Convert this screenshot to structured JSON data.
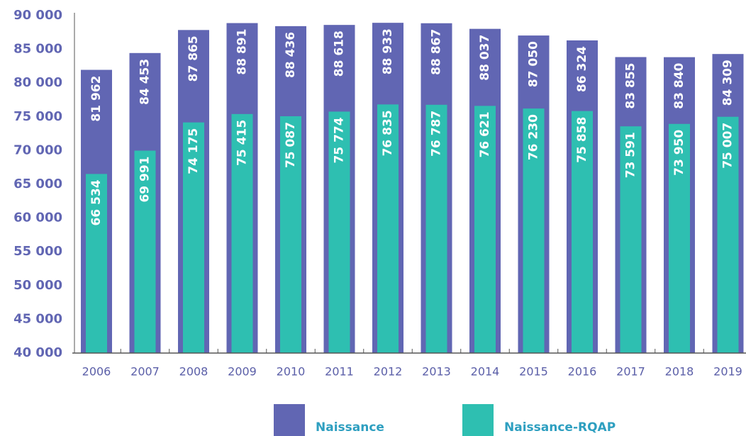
{
  "chart_data": {
    "type": "bar",
    "overlap": true,
    "categories": [
      "2006",
      "2007",
      "2008",
      "2009",
      "2010",
      "2011",
      "2012",
      "2013",
      "2014",
      "2015",
      "2016",
      "2017",
      "2018",
      "2019"
    ],
    "series": [
      {
        "name": "Naissance",
        "color": "#6166b3",
        "values": [
          81962,
          84453,
          87865,
          88891,
          88436,
          88618,
          88933,
          88867,
          88037,
          87050,
          86324,
          83855,
          83840,
          84309
        ],
        "value_labels": [
          "81 962",
          "84 453",
          "87 865",
          "88 891",
          "88 436",
          "88 618",
          "88 933",
          "88 867",
          "88 037",
          "87 050",
          "86 324",
          "83 855",
          "83 840",
          "84 309"
        ]
      },
      {
        "name": "Naissance-RQAP",
        "color": "#2ebfb1",
        "values": [
          66534,
          69991,
          74175,
          75415,
          75087,
          75774,
          76835,
          76787,
          76621,
          76230,
          75858,
          73591,
          73950,
          75007
        ],
        "value_labels": [
          "66 534",
          "69 991",
          "74 175",
          "75 415",
          "75 087",
          "75 774",
          "76 835",
          "76 787",
          "76 621",
          "76 230",
          "75 858",
          "73 591",
          "73 950",
          "75 007"
        ]
      }
    ],
    "ylim": [
      40000,
      90000
    ],
    "yticks": [
      {
        "value": 40000,
        "label": "40 000"
      },
      {
        "value": 45000,
        "label": "45 000"
      },
      {
        "value": 50000,
        "label": "50 000"
      },
      {
        "value": 55000,
        "label": "55 000"
      },
      {
        "value": 60000,
        "label": "60 000"
      },
      {
        "value": 65000,
        "label": "65 000"
      },
      {
        "value": 70000,
        "label": "70 000"
      },
      {
        "value": 75000,
        "label": "75 000"
      },
      {
        "value": 80000,
        "label": "80 000"
      },
      {
        "value": 85000,
        "label": "85 000"
      },
      {
        "value": 90000,
        "label": "90 000"
      }
    ],
    "legend": "bottom"
  }
}
